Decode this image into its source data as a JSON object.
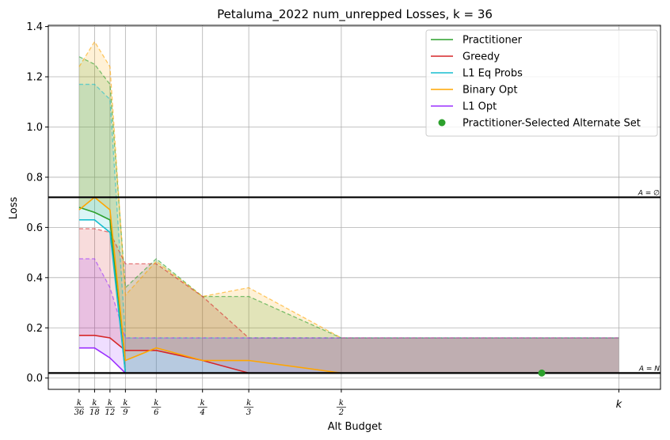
{
  "chart_data": {
    "type": "line",
    "title": "Petaluma_2022 num_unrepped Losses, k = 36",
    "xlabel": "Alt Budget",
    "ylabel": "Loss",
    "ylim": [
      -0.045,
      1.405
    ],
    "x": [
      1,
      2,
      3,
      4,
      6,
      9,
      12,
      18,
      36
    ],
    "xtick_labels": [
      {
        "x": 1,
        "num": "k",
        "den": "36"
      },
      {
        "x": 2,
        "num": "k",
        "den": "18"
      },
      {
        "x": 3,
        "num": "k",
        "den": "12"
      },
      {
        "x": 4,
        "num": "k",
        "den": "9"
      },
      {
        "x": 6,
        "num": "k",
        "den": "6"
      },
      {
        "x": 9,
        "num": "k",
        "den": "4"
      },
      {
        "x": 12,
        "num": "k",
        "den": "3"
      },
      {
        "x": 18,
        "num": "k",
        "den": "2"
      },
      {
        "x": 36,
        "num": "k",
        "den": ""
      }
    ],
    "yticks": [
      "0.0",
      "0.2",
      "0.4",
      "0.6",
      "0.8",
      "1.0",
      "1.2",
      "1.4"
    ],
    "grid": true,
    "legend_position": "top-right",
    "series": [
      {
        "name": "Practitioner",
        "color": "#2ca02c",
        "values": [
          0.68,
          0.66,
          0.63,
          0.02,
          null,
          null,
          null,
          null,
          null
        ],
        "upper": [
          1.28,
          1.25,
          1.17,
          0.36,
          0.475,
          0.325,
          0.325,
          0.16,
          0.16
        ]
      },
      {
        "name": "Greedy",
        "color": "#d62728",
        "values": [
          0.17,
          0.17,
          0.16,
          0.11,
          0.11,
          0.07,
          0.02,
          0.02,
          0.02
        ],
        "upper": [
          0.595,
          0.595,
          0.58,
          0.455,
          0.455,
          0.325,
          0.16,
          0.16,
          0.16
        ]
      },
      {
        "name": "L1 Eq Probs",
        "color": "#17becf",
        "values": [
          0.63,
          0.63,
          0.58,
          0.02,
          null,
          null,
          null,
          null,
          null
        ],
        "upper": [
          1.17,
          1.17,
          1.11,
          0.16,
          0.16,
          0.16,
          0.16,
          0.16,
          0.16
        ]
      },
      {
        "name": "Binary Opt",
        "color": "#ffa500",
        "values": [
          0.67,
          0.72,
          0.67,
          0.07,
          0.12,
          0.07,
          0.07,
          0.02,
          0.02
        ],
        "upper": [
          1.24,
          1.34,
          1.24,
          0.33,
          0.465,
          0.325,
          0.36,
          0.16,
          0.16
        ]
      },
      {
        "name": "L1 Opt",
        "color": "#9b30ff",
        "values": [
          0.12,
          0.12,
          0.08,
          0.02,
          null,
          null,
          null,
          null,
          null
        ],
        "upper": [
          0.475,
          0.475,
          0.36,
          0.16,
          0.16,
          0.16,
          0.16,
          0.16,
          0.16
        ]
      }
    ],
    "scatter": {
      "name": "Practitioner-Selected Alternate Set",
      "color": "#2ca02c",
      "x": 31,
      "y": 0.02
    },
    "hlines": [
      {
        "y": 0.72,
        "label": "A = ∅"
      },
      {
        "y": 0.02,
        "label": "A = N"
      }
    ]
  }
}
